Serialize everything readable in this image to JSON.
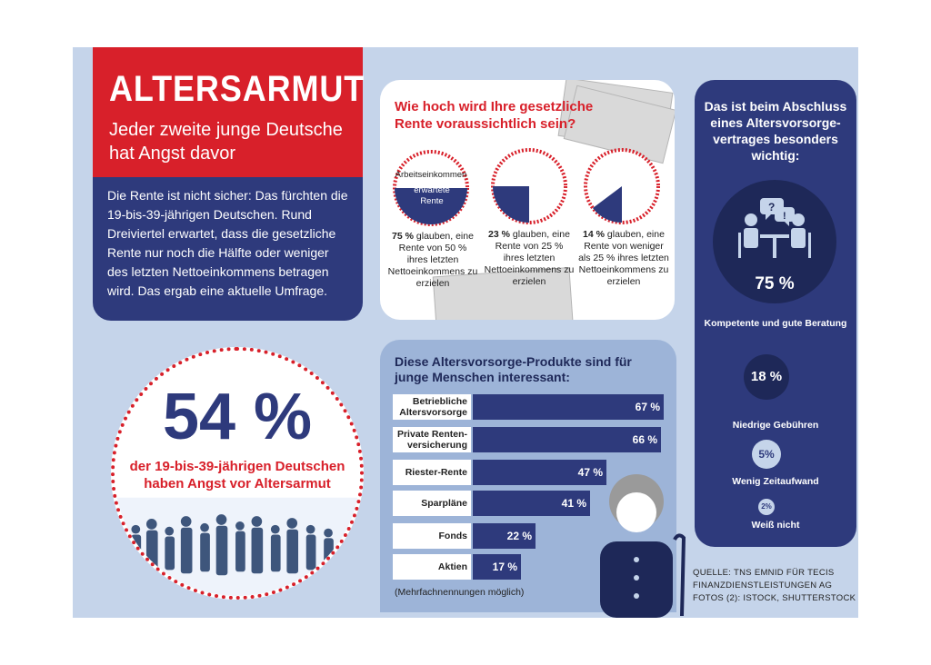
{
  "header": {
    "title": "ALTERSARMUT",
    "subtitle": "Jeder zweite junge Deutsche hat Angst davor"
  },
  "intro": "Die Rente ist nicht sicher: Das fürchten die 19-bis-39-jährigen Deutschen. Rund Dreiviertel erwartet, dass die gesetzliche Rente nur noch die Hälfte oder weniger des letzten Nettoeinkommens betragen wird. Das ergab eine aktuelle Umfrage.",
  "headline_stat": {
    "value": "54 %",
    "text": "der 19-bis-39-jährigen Deutschen haben Angst vor Altersarmut"
  },
  "rente": {
    "question": "Wie hoch wird Ihre gesetzliche Rente voraussichtlich sein?",
    "legend_income": "Arbeitseinkommen",
    "legend_pension": "erwartete Rente",
    "items": [
      {
        "pct": "75 %",
        "text": "glauben, eine Rente von 50 % ihres letzten Nettoeinkommens zu erzielen"
      },
      {
        "pct": "23 %",
        "text": "glauben, eine Rente von 25 % ihres letzten Nettoeinkommens zu erzielen"
      },
      {
        "pct": "14 %",
        "text": "glauben, eine Rente von weniger als 25 % ihres letzten Nettoeinkommens zu erzielen"
      }
    ]
  },
  "important": {
    "title": "Das ist beim Abschluss eines Altersvorsorge-vertrages besonders wichtig:",
    "items": [
      {
        "value": "75 %",
        "label": "Kompetente und gute Beratung"
      },
      {
        "value": "18 %",
        "label": "Niedrige Gebühren"
      },
      {
        "value": "5%",
        "label": "Wenig Zeitaufwand"
      },
      {
        "value": "2%",
        "label": "Weiß nicht"
      }
    ]
  },
  "products": {
    "title": "Diese Altersvorsorge-Produkte sind für junge Menschen interessant:",
    "footnote": "(Mehrfachnennungen möglich)"
  },
  "source": {
    "line1": "QUELLE: TNS EMNID FÜR TECIS FINANZDIENSTLEISTUNGEN AG",
    "line2": "FOTOS (2): ISTOCK, SHUTTERSTOCK"
  },
  "colors": {
    "red": "#d8202a",
    "navy": "#2e3a7c",
    "light_blue": "#c5d4ea",
    "panel_blue": "#9db4d8"
  },
  "chart_data": {
    "type": "bar",
    "title": "Diese Altersvorsorge-Produkte sind für junge Menschen interessant:",
    "orientation": "horizontal",
    "categories": [
      "Betriebliche Altersvorsorge",
      "Private Renten-versicherung",
      "Riester-Rente",
      "Sparpläne",
      "Fonds",
      "Aktien"
    ],
    "values": [
      67,
      66,
      47,
      41,
      22,
      17
    ],
    "value_labels": [
      "67 %",
      "66 %",
      "47 %",
      "41 %",
      "22 %",
      "17 %"
    ],
    "unit": "%",
    "xlim": [
      0,
      67
    ]
  }
}
